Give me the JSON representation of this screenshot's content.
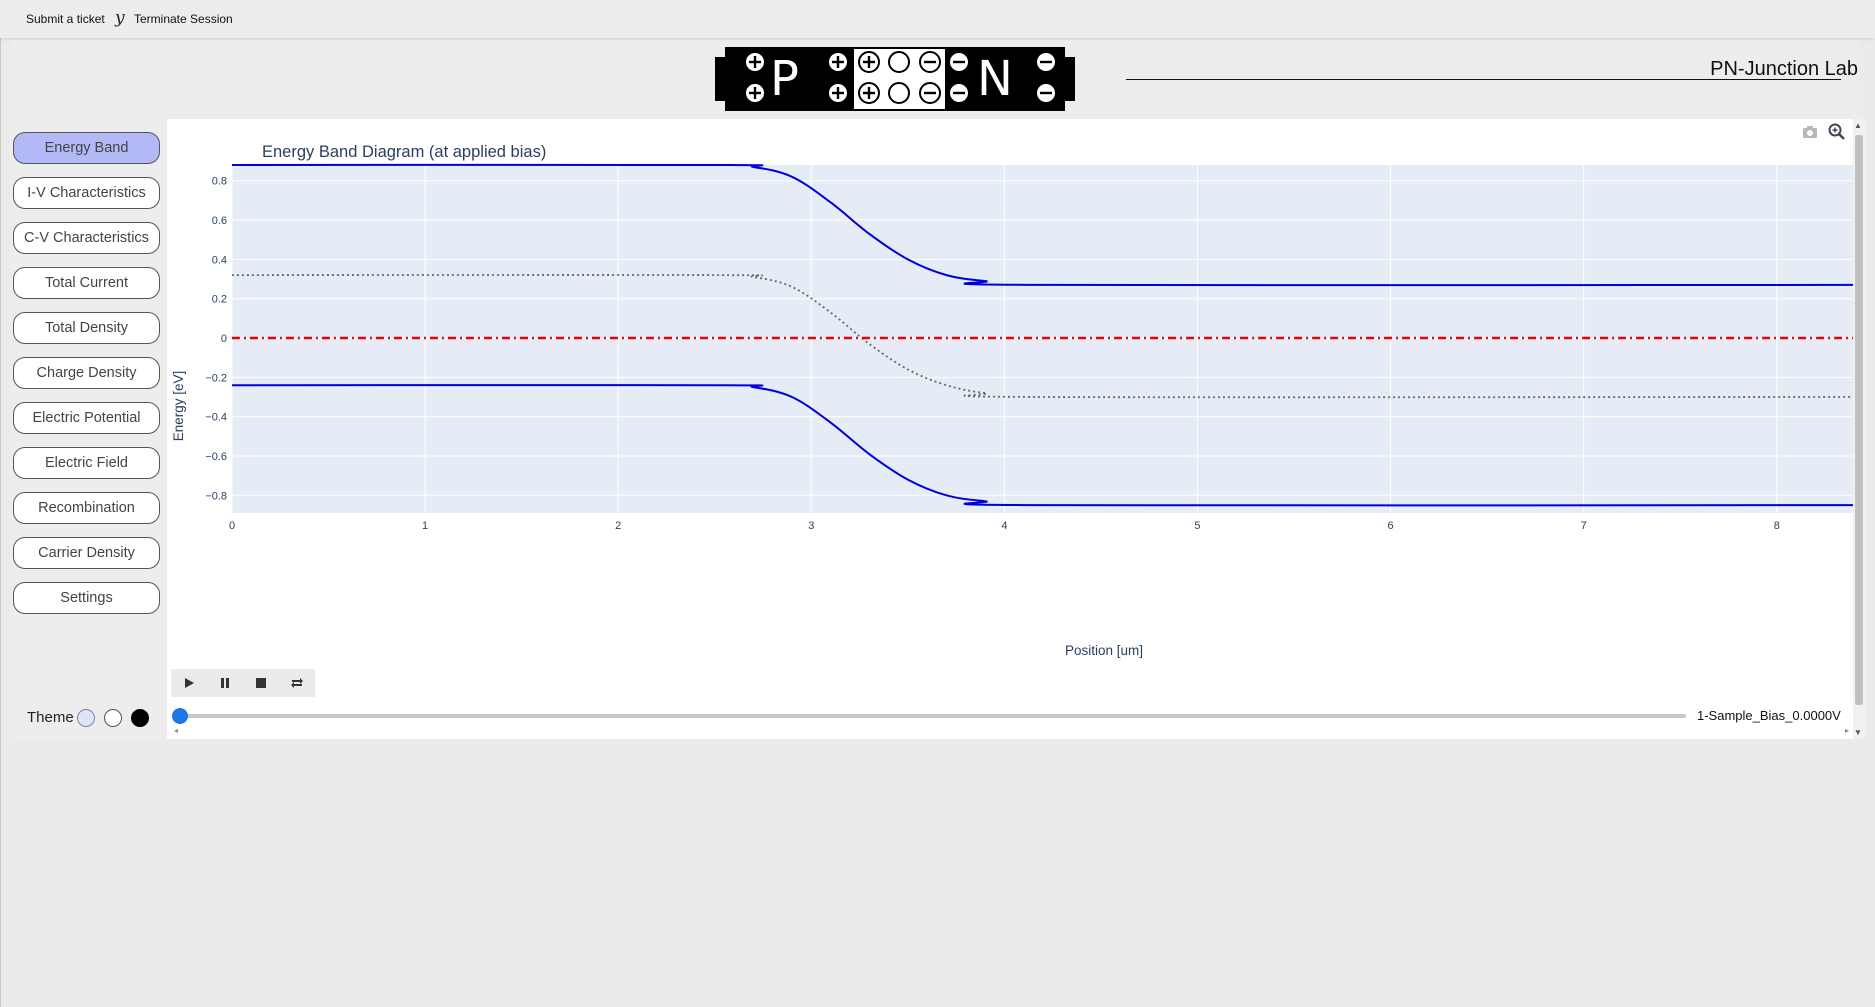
{
  "topbar": {
    "submit_ticket": "Submit a ticket",
    "separator": "y",
    "terminate": "Terminate Session"
  },
  "header": {
    "app_title": "PN-Junction Lab",
    "logo": {
      "p_label": "P",
      "n_label": "N"
    }
  },
  "sidebar": {
    "items": [
      {
        "label": "Energy Band",
        "active": true
      },
      {
        "label": "I-V Characteristics"
      },
      {
        "label": "C-V Characteristics"
      },
      {
        "label": "Total Current"
      },
      {
        "label": "Total Density"
      },
      {
        "label": "Charge Density"
      },
      {
        "label": "Electric Potential"
      },
      {
        "label": "Electric Field"
      },
      {
        "label": "Recombination"
      },
      {
        "label": "Carrier Density"
      },
      {
        "label": "Settings"
      }
    ],
    "theme_label": "Theme",
    "theme_swatches": [
      "#dce4f5",
      "#ffffff",
      "#000000"
    ]
  },
  "modebar": {
    "icons": [
      "camera-icon",
      "zoom-icon"
    ]
  },
  "controls": {
    "buttons": [
      "play-icon",
      "pause-icon",
      "stop-icon",
      "loop-icon"
    ],
    "slider_value": 0,
    "slider_label": "1-Sample_Bias_0.0000V"
  },
  "colors": {
    "band": "#0000dd",
    "intrinsic": "#666666",
    "fermi": "#ee0000",
    "plot_bg": "#e5ecf6",
    "active_nav": "#b3b9f6"
  },
  "chart_data": {
    "type": "line",
    "title": "Energy Band Diagram (at applied bias)",
    "xlabel": "Position [um]",
    "ylabel": "Energy [eV]",
    "xlim": [
      0,
      8.4
    ],
    "ylim": [
      -0.89,
      0.88
    ],
    "xticks": [
      0,
      1,
      2,
      3,
      4,
      5,
      6,
      7,
      8
    ],
    "yticks": [
      -0.8,
      -0.6,
      -0.4,
      -0.2,
      0,
      0.2,
      0.4,
      0.6,
      0.8
    ],
    "grid": true,
    "series": [
      {
        "style": "solid",
        "color": "#0000dd",
        "x": [
          0,
          2.5,
          2.7,
          2.9,
          3.1,
          3.3,
          3.5,
          3.7,
          3.9,
          4.2,
          8.4
        ],
        "y": [
          0.88,
          0.88,
          0.87,
          0.82,
          0.69,
          0.53,
          0.4,
          0.32,
          0.29,
          0.27,
          0.27
        ]
      },
      {
        "style": "dotted",
        "color": "#666666",
        "x": [
          0,
          2.5,
          2.7,
          2.9,
          3.1,
          3.3,
          3.5,
          3.7,
          3.9,
          4.2,
          8.4
        ],
        "y": [
          0.32,
          0.32,
          0.31,
          0.26,
          0.13,
          -0.03,
          -0.16,
          -0.24,
          -0.28,
          -0.3,
          -0.3
        ]
      },
      {
        "style": "dashdot",
        "color": "#ee0000",
        "x": [
          0,
          8.4
        ],
        "y": [
          0,
          0
        ]
      },
      {
        "style": "solid",
        "color": "#0000dd",
        "x": [
          0,
          2.5,
          2.7,
          2.9,
          3.1,
          3.3,
          3.5,
          3.7,
          3.9,
          4.2,
          8.4
        ],
        "y": [
          -0.24,
          -0.24,
          -0.25,
          -0.3,
          -0.43,
          -0.59,
          -0.72,
          -0.8,
          -0.83,
          -0.85,
          -0.85
        ]
      }
    ]
  }
}
